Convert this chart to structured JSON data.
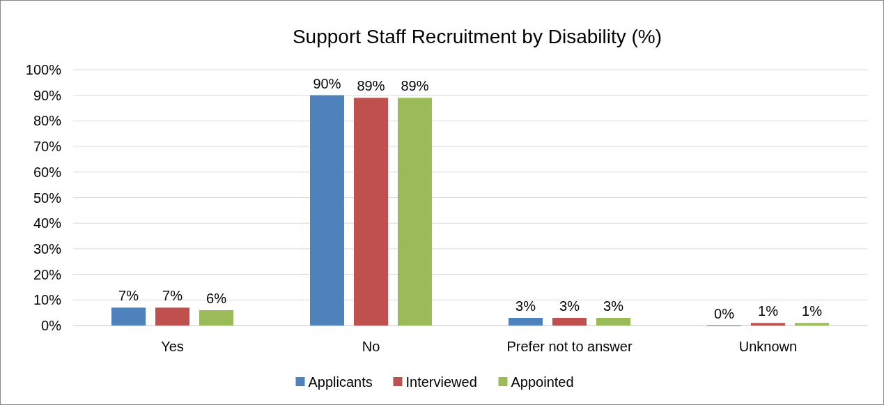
{
  "chart_data": {
    "type": "bar",
    "title": "Support Staff Recruitment by Disability (%)",
    "categories": [
      "Yes",
      "No",
      "Prefer not to answer",
      "Unknown"
    ],
    "series": [
      {
        "name": "Applicants",
        "color": "#4f81bd",
        "values": [
          7,
          90,
          3,
          0
        ],
        "value_labels": [
          "7%",
          "90%",
          "3%",
          "0%"
        ]
      },
      {
        "name": "Interviewed",
        "color": "#c0504d",
        "values": [
          7,
          89,
          3,
          1
        ],
        "value_labels": [
          "7%",
          "89%",
          "3%",
          "1%"
        ]
      },
      {
        "name": "Appointed",
        "color": "#9bbb59",
        "values": [
          6,
          89,
          3,
          1
        ],
        "value_labels": [
          "6%",
          "89%",
          "3%",
          "1%"
        ]
      }
    ],
    "ylim": [
      0,
      100
    ],
    "yticks": [
      {
        "value": 0,
        "label": "0%"
      },
      {
        "value": 10,
        "label": "10%"
      },
      {
        "value": 20,
        "label": "20%"
      },
      {
        "value": 30,
        "label": "30%"
      },
      {
        "value": 40,
        "label": "40%"
      },
      {
        "value": 50,
        "label": "50%"
      },
      {
        "value": 60,
        "label": "60%"
      },
      {
        "value": 70,
        "label": "70%"
      },
      {
        "value": 80,
        "label": "80%"
      },
      {
        "value": 90,
        "label": "90%"
      },
      {
        "value": 100,
        "label": "100%"
      }
    ],
    "grid": "y",
    "legend": "bottom"
  }
}
